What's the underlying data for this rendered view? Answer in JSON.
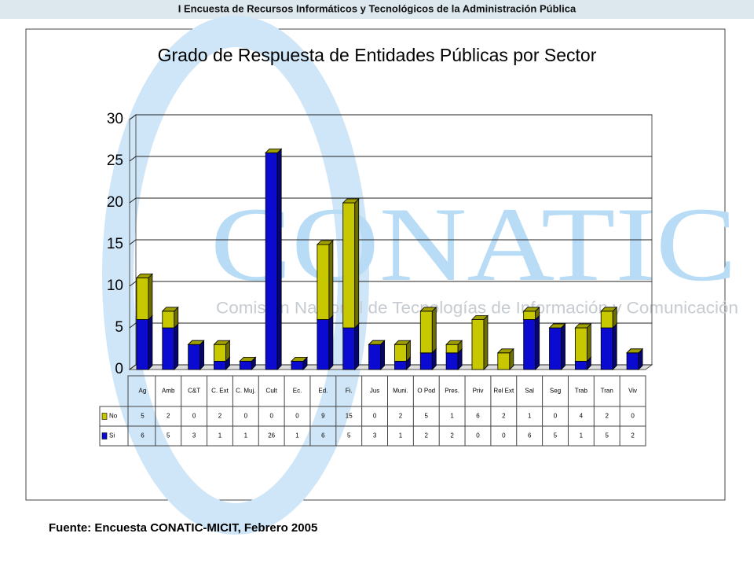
{
  "header": "I Encuesta de Recursos Informáticos y Tecnológicos de la Administración Pública",
  "watermark": {
    "title": "CONATIC",
    "subtitle": "Comisión Nacional de Tecnologías de Información y Comunicación"
  },
  "chart_data": {
    "type": "bar",
    "stacked": true,
    "title": "Grado de Respuesta de Entidades Públicas por Sector",
    "categories": [
      "Ag",
      "Amb",
      "C&T",
      "C. Ext",
      "C. Muj.",
      "Cult",
      "Ec.",
      "Ed.",
      "Fi.",
      "Jus",
      "Muni.",
      "O Pod",
      "Pres.",
      "Priv",
      "Rel Ext",
      "Sal",
      "Seg",
      "Trab",
      "Tran",
      "Viv"
    ],
    "series": [
      {
        "name": "No",
        "color": "#c8c800",
        "values": [
          5,
          2,
          0,
          2,
          0,
          0,
          0,
          9,
          15,
          0,
          2,
          5,
          1,
          6,
          2,
          1,
          0,
          4,
          2,
          0
        ]
      },
      {
        "name": "Si",
        "color": "#0a0ad0",
        "values": [
          6,
          5,
          3,
          1,
          1,
          26,
          1,
          6,
          5,
          3,
          1,
          2,
          2,
          0,
          0,
          6,
          5,
          1,
          5,
          2
        ]
      }
    ],
    "ylim": [
      0,
      30
    ],
    "yticks": [
      0,
      5,
      10,
      15,
      20,
      25,
      30
    ],
    "grid": true
  },
  "source": "Fuente: Encuesta CONATIC-MICIT, Febrero 2005"
}
